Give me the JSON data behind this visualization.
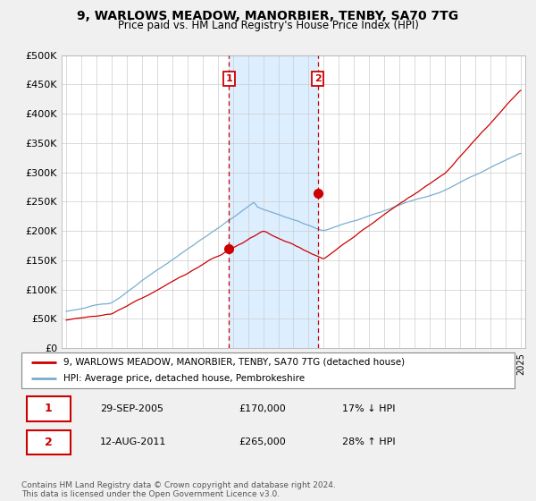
{
  "title": "9, WARLOWS MEADOW, MANORBIER, TENBY, SA70 7TG",
  "subtitle": "Price paid vs. HM Land Registry's House Price Index (HPI)",
  "ylabel_ticks": [
    "£0",
    "£50K",
    "£100K",
    "£150K",
    "£200K",
    "£250K",
    "£300K",
    "£350K",
    "£400K",
    "£450K",
    "£500K"
  ],
  "ytick_values": [
    0,
    50000,
    100000,
    150000,
    200000,
    250000,
    300000,
    350000,
    400000,
    450000,
    500000
  ],
  "ymax": 500000,
  "xmin": 1994.7,
  "xmax": 2025.3,
  "sale1_date": 2005.75,
  "sale1_price": 170000,
  "sale2_date": 2011.6,
  "sale2_price": 265000,
  "red_color": "#cc0000",
  "blue_color": "#7aadcf",
  "shaded_color": "#ddeeff",
  "legend_line1": "9, WARLOWS MEADOW, MANORBIER, TENBY, SA70 7TG (detached house)",
  "legend_line2": "HPI: Average price, detached house, Pembrokeshire",
  "table_row1": [
    "1",
    "29-SEP-2005",
    "£170,000",
    "17% ↓ HPI"
  ],
  "table_row2": [
    "2",
    "12-AUG-2011",
    "£265,000",
    "28% ↑ HPI"
  ],
  "footnote": "Contains HM Land Registry data © Crown copyright and database right 2024.\nThis data is licensed under the Open Government Licence v3.0.",
  "bg_color": "#f0f0f0"
}
